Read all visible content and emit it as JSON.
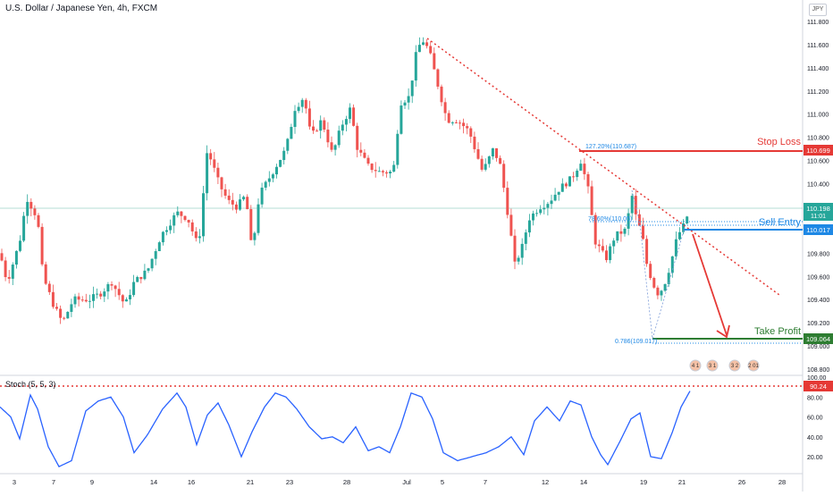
{
  "header": {
    "title": "U.S. Dollar / Japanese Yen, 4h, FXCM",
    "currency": "JPY"
  },
  "indicator": {
    "label": "Stoch (5, 5, 3)"
  },
  "price_axis": {
    "ticks": [
      "111.800",
      "111.600",
      "111.400",
      "111.200",
      "111.000",
      "110.800",
      "110.600",
      "110.400",
      "110.200",
      "110.000",
      "109.800",
      "109.600",
      "109.400",
      "109.200",
      "109.000",
      "108.800"
    ]
  },
  "stoch_axis": {
    "ticks": [
      "100.00",
      "80.00",
      "60.00",
      "40.00",
      "20.00"
    ]
  },
  "time_axis": {
    "ticks": [
      "3",
      "7",
      "9",
      "14",
      "16",
      "21",
      "23",
      "28",
      "Jul",
      "5",
      "7",
      "12",
      "14",
      "19",
      "21",
      "26",
      "28"
    ]
  },
  "price_badges": {
    "stop_loss": "110.699",
    "current": "110.198",
    "countdown": "11:01",
    "sell_entry": "110.017",
    "take_profit": "109.064",
    "stoch": "90.24"
  },
  "levels": {
    "stop_loss_label": "Stop Loss",
    "sell_entry_label": "Sell Entry",
    "take_profit_label": "Take Profit",
    "fib_127": "127.20%(110.687)",
    "fib_786": "0.786(109.017)",
    "fib_mid": "78.60%(110.05)"
  },
  "events": [
    "4 1",
    "3 1",
    "3 2",
    "2 01"
  ],
  "colors": {
    "up": "#26a69a",
    "down": "#ef5350",
    "stop": "#e53935",
    "entry": "#1e88e5",
    "profit": "#2e7d32",
    "stoch": "#2962ff",
    "trend": "#e53935"
  },
  "chart_data": {
    "type": "candlestick",
    "title": "U.S. Dollar / Japanese Yen, 4h, FXCM",
    "ylim": [
      108.7,
      111.95
    ],
    "path_points": [
      [
        0,
        109.8
      ],
      [
        8,
        109.55
      ],
      [
        22,
        109.9
      ],
      [
        30,
        110.28
      ],
      [
        42,
        110.1
      ],
      [
        48,
        109.6
      ],
      [
        60,
        109.35
      ],
      [
        70,
        109.2
      ],
      [
        82,
        109.4
      ],
      [
        100,
        109.4
      ],
      [
        112,
        109.45
      ],
      [
        125,
        109.55
      ],
      [
        140,
        109.35
      ],
      [
        150,
        109.55
      ],
      [
        165,
        109.65
      ],
      [
        180,
        109.95
      ],
      [
        198,
        110.15
      ],
      [
        210,
        110.1
      ],
      [
        222,
        109.85
      ],
      [
        232,
        110.7
      ],
      [
        245,
        110.4
      ],
      [
        255,
        110.25
      ],
      [
        265,
        110.2
      ],
      [
        275,
        110.3
      ],
      [
        282,
        109.8
      ],
      [
        290,
        110.3
      ],
      [
        305,
        110.5
      ],
      [
        320,
        110.7
      ],
      [
        330,
        111.05
      ],
      [
        340,
        111.15
      ],
      [
        348,
        110.8
      ],
      [
        360,
        110.95
      ],
      [
        372,
        110.65
      ],
      [
        382,
        110.9
      ],
      [
        392,
        111.05
      ],
      [
        400,
        110.7
      ],
      [
        412,
        110.55
      ],
      [
        425,
        110.5
      ],
      [
        440,
        110.5
      ],
      [
        448,
        111.1
      ],
      [
        458,
        111.15
      ],
      [
        465,
        111.5
      ],
      [
        472,
        111.65
      ],
      [
        480,
        111.55
      ],
      [
        490,
        111.25
      ],
      [
        500,
        110.95
      ],
      [
        512,
        110.95
      ],
      [
        525,
        110.85
      ],
      [
        540,
        110.5
      ],
      [
        552,
        110.7
      ],
      [
        560,
        110.55
      ],
      [
        570,
        110.05
      ],
      [
        576,
        109.7
      ],
      [
        584,
        109.85
      ],
      [
        592,
        110.1
      ],
      [
        604,
        110.2
      ],
      [
        615,
        110.25
      ],
      [
        625,
        110.35
      ],
      [
        640,
        110.45
      ],
      [
        650,
        110.6
      ],
      [
        658,
        110.35
      ],
      [
        666,
        109.9
      ],
      [
        678,
        109.75
      ],
      [
        688,
        109.95
      ],
      [
        700,
        110.0
      ],
      [
        707,
        110.3
      ],
      [
        713,
        110.05
      ],
      [
        718,
        110.0
      ],
      [
        722,
        109.75
      ],
      [
        728,
        109.6
      ],
      [
        735,
        109.45
      ],
      [
        742,
        109.5
      ],
      [
        750,
        109.7
      ],
      [
        758,
        109.95
      ],
      [
        766,
        110.05
      ],
      [
        772,
        110.2
      ]
    ],
    "stoch_points": [
      [
        0,
        70
      ],
      [
        12,
        60
      ],
      [
        22,
        38
      ],
      [
        34,
        82
      ],
      [
        42,
        68
      ],
      [
        54,
        30
      ],
      [
        66,
        10
      ],
      [
        80,
        16
      ],
      [
        96,
        66
      ],
      [
        110,
        76
      ],
      [
        124,
        80
      ],
      [
        138,
        60
      ],
      [
        150,
        24
      ],
      [
        165,
        42
      ],
      [
        182,
        68
      ],
      [
        198,
        84
      ],
      [
        208,
        70
      ],
      [
        220,
        32
      ],
      [
        232,
        62
      ],
      [
        244,
        74
      ],
      [
        256,
        52
      ],
      [
        270,
        20
      ],
      [
        282,
        45
      ],
      [
        296,
        70
      ],
      [
        308,
        84
      ],
      [
        320,
        80
      ],
      [
        332,
        68
      ],
      [
        346,
        50
      ],
      [
        360,
        38
      ],
      [
        372,
        40
      ],
      [
        384,
        34
      ],
      [
        398,
        50
      ],
      [
        412,
        26
      ],
      [
        424,
        30
      ],
      [
        436,
        24
      ],
      [
        448,
        50
      ],
      [
        460,
        84
      ],
      [
        472,
        80
      ],
      [
        484,
        58
      ],
      [
        496,
        24
      ],
      [
        512,
        16
      ],
      [
        528,
        20
      ],
      [
        544,
        24
      ],
      [
        558,
        30
      ],
      [
        572,
        40
      ],
      [
        586,
        22
      ],
      [
        598,
        56
      ],
      [
        612,
        70
      ],
      [
        626,
        56
      ],
      [
        638,
        76
      ],
      [
        650,
        72
      ],
      [
        662,
        40
      ],
      [
        672,
        22
      ],
      [
        680,
        12
      ],
      [
        694,
        36
      ],
      [
        706,
        58
      ],
      [
        716,
        64
      ],
      [
        728,
        20
      ],
      [
        740,
        18
      ],
      [
        752,
        44
      ],
      [
        762,
        70
      ],
      [
        772,
        86
      ]
    ],
    "stoch_label": "Stoch (5, 5, 3)",
    "stoch_level": 90.24
  }
}
